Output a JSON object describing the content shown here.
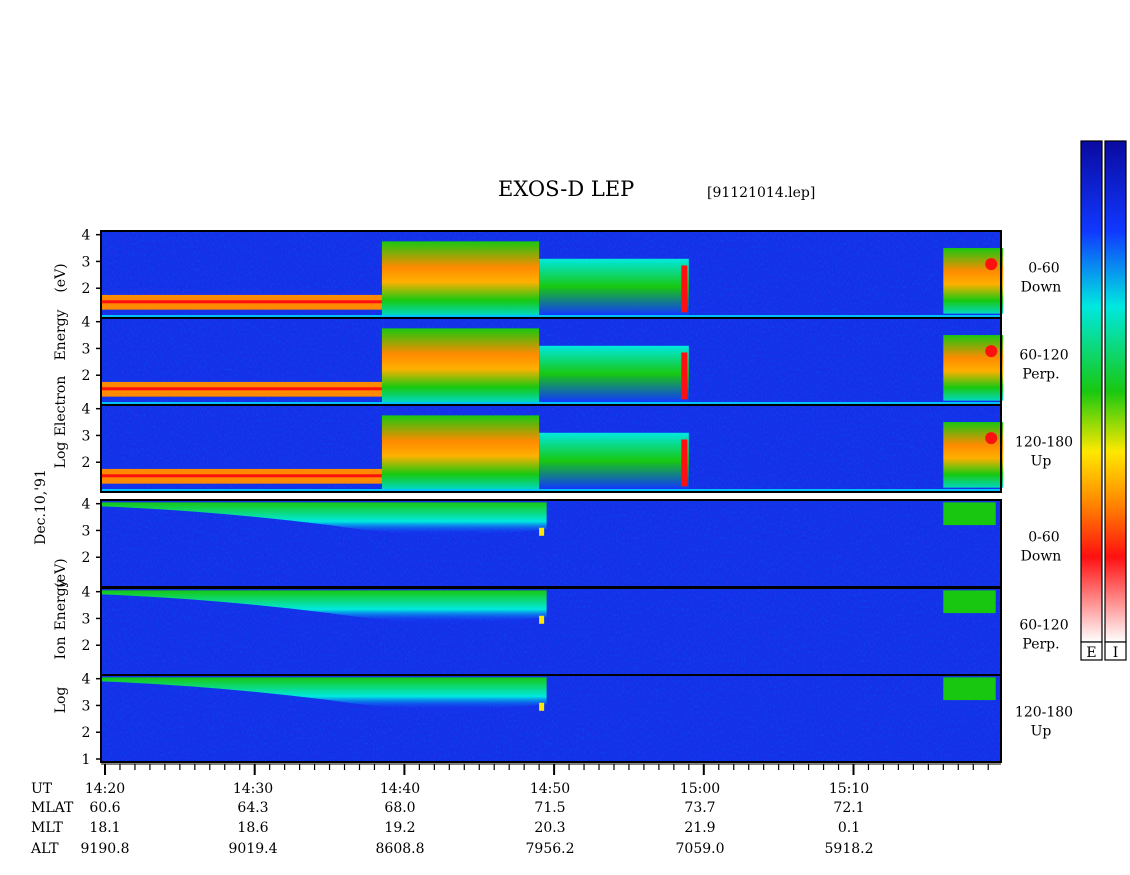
{
  "title": "EXOS-D LEP",
  "subtitle": "[91121014.lep]",
  "date_label": "Dec.10,'91",
  "electron_ylabel": [
    "Log",
    "Electron",
    "Energy",
    "(eV)"
  ],
  "ion_ylabel": [
    "Log",
    "Ion",
    "Energy",
    "(eV)"
  ],
  "colorbar_labels": [
    "E",
    "I"
  ],
  "colors": {
    "spectrogram_scale": [
      "#ffffff",
      "#ff1010",
      "#ff8a00",
      "#ffe800",
      "#18c810",
      "#00e8e0",
      "#1038ff",
      "#0a0aa0"
    ]
  },
  "orbit_table": {
    "row_labels": [
      "UT",
      "MLAT",
      "MLT",
      "ALT"
    ],
    "columns": [
      {
        "UT": "14:20",
        "MLAT": "60.6",
        "MLT": "18.1",
        "ALT": "9190.8"
      },
      {
        "UT": "14:30",
        "MLAT": "64.3",
        "MLT": "18.6",
        "ALT": "9019.4"
      },
      {
        "UT": "14:40",
        "MLAT": "68.0",
        "MLT": "19.2",
        "ALT": "8608.8"
      },
      {
        "UT": "14:50",
        "MLAT": "71.5",
        "MLT": "20.3",
        "ALT": "7956.2"
      },
      {
        "UT": "15:00",
        "MLAT": "73.7",
        "MLT": "21.9",
        "ALT": "7059.0"
      },
      {
        "UT": "15:10",
        "MLAT": "72.1",
        "MLT": "0.1",
        "ALT": "5918.2"
      }
    ]
  },
  "chart_data": {
    "type": "heatmap",
    "title": "EXOS-D LEP",
    "subtitle": "[91121014.lep]",
    "xlabel": "UT",
    "x_ticks": [
      "14:20",
      "14:30",
      "14:40",
      "14:50",
      "15:00",
      "15:10"
    ],
    "x_range_minutes": [
      0,
      60
    ],
    "y_scale": "log10 energy (eV)",
    "colorbar_labels": [
      "E",
      "I"
    ],
    "panels": [
      {
        "species": "Electron",
        "pitch_angle": "0-60",
        "direction": "Down",
        "y_ticks": [
          "2",
          "3",
          "4"
        ],
        "ylim": [
          1,
          4.1
        ]
      },
      {
        "species": "Electron",
        "pitch_angle": "60-120",
        "direction": "Perp.",
        "y_ticks": [
          "2",
          "3",
          "4"
        ],
        "ylim": [
          1,
          4.1
        ]
      },
      {
        "species": "Electron",
        "pitch_angle": "120-180",
        "direction": "Up",
        "y_ticks": [
          "2",
          "3",
          "4"
        ],
        "ylim": [
          1,
          4.1
        ]
      },
      {
        "species": "Ion",
        "pitch_angle": "0-60",
        "direction": "Down",
        "y_ticks": [
          "2",
          "3",
          "4"
        ],
        "ylim": [
          1,
          4.1
        ]
      },
      {
        "species": "Ion",
        "pitch_angle": "60-120",
        "direction": "Perp.",
        "y_ticks": [
          "2",
          "3",
          "4"
        ],
        "ylim": [
          1,
          4.1
        ]
      },
      {
        "species": "Ion",
        "pitch_angle": "120-180",
        "direction": "Up",
        "y_ticks": [
          "1",
          "2",
          "3",
          "4"
        ],
        "ylim": [
          1,
          4.1
        ]
      }
    ]
  }
}
